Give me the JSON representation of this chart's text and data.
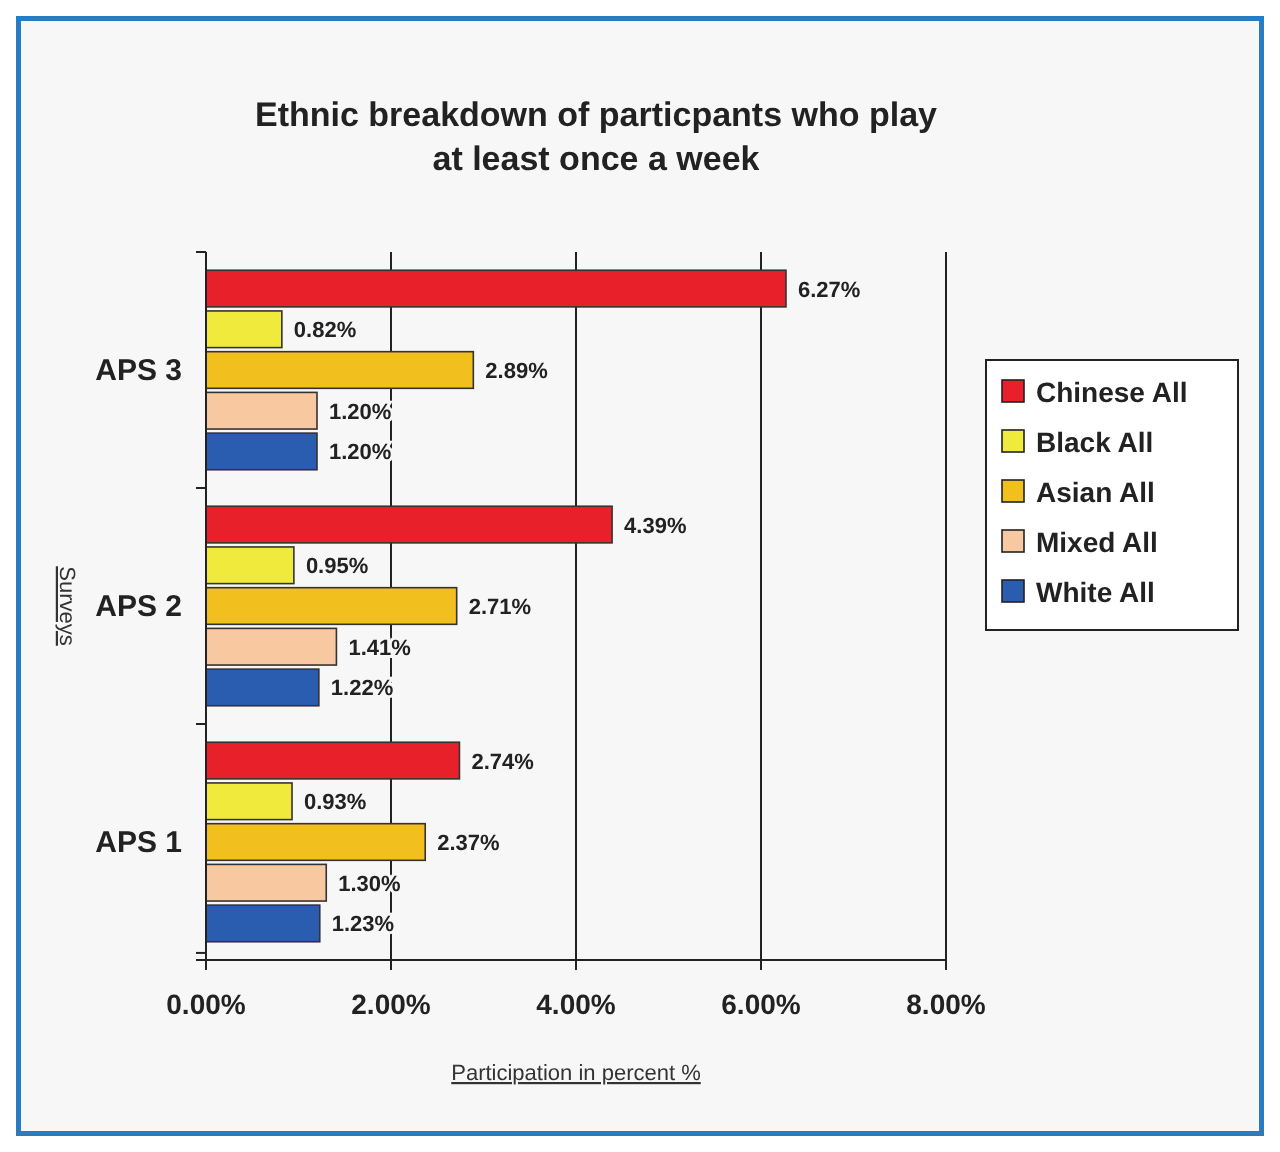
{
  "chart_data": {
    "type": "bar",
    "orientation": "horizontal",
    "title": "Ethnic breakdown of particpants who play at least once a week",
    "xlabel": "Participation in percent %",
    "ylabel": "Surveys",
    "categories": [
      "APS 3",
      "APS 2",
      "APS 1"
    ],
    "series": [
      {
        "name": "Chinese All",
        "color": "#e8202a",
        "values": [
          6.27,
          4.39,
          2.74
        ],
        "value_labels": [
          "6.27%",
          "4.39%",
          "2.74%"
        ]
      },
      {
        "name": "Black All",
        "color": "#f0ea3c",
        "values": [
          0.82,
          0.95,
          0.93
        ],
        "value_labels": [
          "0.82%",
          "0.95%",
          "0.93%"
        ]
      },
      {
        "name": "Asian All",
        "color": "#f2c01e",
        "values": [
          2.89,
          2.71,
          2.37
        ],
        "value_labels": [
          "2.89%",
          "2.71%",
          "2.37%"
        ]
      },
      {
        "name": "Mixed All",
        "color": "#f8c8a0",
        "values": [
          1.2,
          1.41,
          1.3
        ],
        "value_labels": [
          "1.20%",
          "1.41%",
          "1.30%"
        ]
      },
      {
        "name": "White All",
        "color": "#2a5cb0",
        "values": [
          1.2,
          1.22,
          1.23
        ],
        "value_labels": [
          "1.20%",
          "1.22%",
          "1.23%"
        ]
      }
    ],
    "xlim": [
      0,
      8
    ],
    "xticks": [
      {
        "value": 0,
        "label": "0.00%"
      },
      {
        "value": 2,
        "label": "2.00%"
      },
      {
        "value": 4,
        "label": "4.00%"
      },
      {
        "value": 6,
        "label": "6.00%"
      },
      {
        "value": 8,
        "label": "8.00%"
      }
    ],
    "grid": "x",
    "legend": "right"
  }
}
